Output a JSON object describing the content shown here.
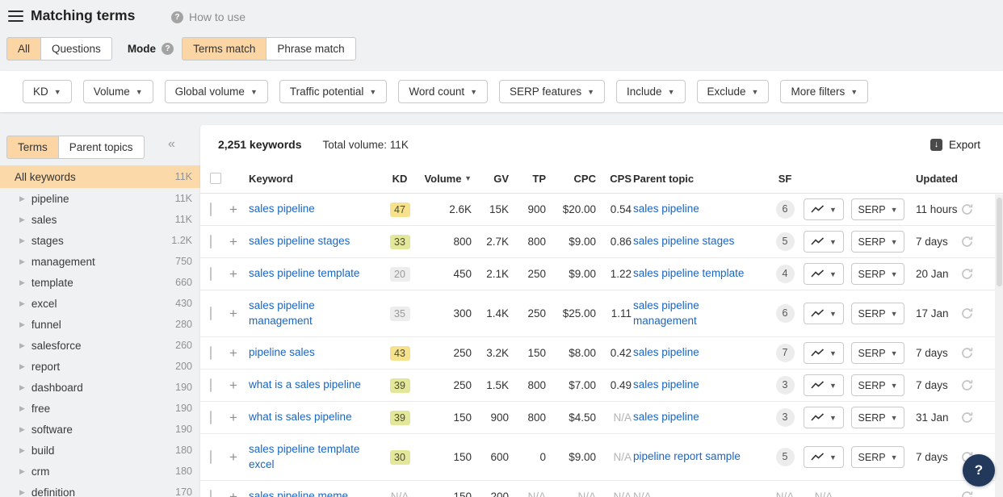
{
  "header": {
    "title": "Matching terms",
    "how_to_use": "How to use",
    "help_glyph": "?"
  },
  "mode_bar": {
    "scope_tabs": [
      {
        "label": "All",
        "selected": true
      },
      {
        "label": "Questions",
        "selected": false
      }
    ],
    "mode_label": "Mode",
    "mode_tabs": [
      {
        "label": "Terms match",
        "selected": true
      },
      {
        "label": "Phrase match",
        "selected": false
      }
    ]
  },
  "filters": [
    "KD",
    "Volume",
    "Global volume",
    "Traffic potential",
    "Word count",
    "SERP features",
    "Include",
    "Exclude",
    "More filters"
  ],
  "sidebar": {
    "tabs": [
      {
        "label": "Terms",
        "selected": true
      },
      {
        "label": "Parent topics",
        "selected": false
      }
    ],
    "collapse_glyph": "«",
    "all_row": {
      "label": "All keywords",
      "count": "11K"
    },
    "items": [
      {
        "label": "pipeline",
        "count": "11K"
      },
      {
        "label": "sales",
        "count": "11K"
      },
      {
        "label": "stages",
        "count": "1.2K"
      },
      {
        "label": "management",
        "count": "750"
      },
      {
        "label": "template",
        "count": "660"
      },
      {
        "label": "excel",
        "count": "430"
      },
      {
        "label": "funnel",
        "count": "280"
      },
      {
        "label": "salesforce",
        "count": "260"
      },
      {
        "label": "report",
        "count": "200"
      },
      {
        "label": "dashboard",
        "count": "190"
      },
      {
        "label": "free",
        "count": "190"
      },
      {
        "label": "software",
        "count": "190"
      },
      {
        "label": "build",
        "count": "180"
      },
      {
        "label": "crm",
        "count": "180"
      },
      {
        "label": "definition",
        "count": "170"
      }
    ]
  },
  "table": {
    "summary_count": "2,251 keywords",
    "summary_total": "Total volume: 11K",
    "export_label": "Export",
    "serp_label": "SERP",
    "columns": {
      "keyword": "Keyword",
      "kd": "KD",
      "volume": "Volume",
      "gv": "GV",
      "tp": "TP",
      "cpc": "CPC",
      "cps": "CPS",
      "parent": "Parent topic",
      "sf": "SF",
      "updated": "Updated"
    },
    "rows": [
      {
        "keyword": "sales pipeline",
        "kd": "47",
        "kd_style": "yellow",
        "volume": "2.6K",
        "gv": "15K",
        "tp": "900",
        "cpc": "$20.00",
        "cps": "0.54",
        "parent": "sales pipeline",
        "sf": "6",
        "updated": "11 hours",
        "buttons": true,
        "tall": false
      },
      {
        "keyword": "sales pipeline stages",
        "kd": "33",
        "kd_style": "lime",
        "volume": "800",
        "gv": "2.7K",
        "tp": "800",
        "cpc": "$9.00",
        "cps": "0.86",
        "parent": "sales pipeline stages",
        "sf": "5",
        "updated": "7 days",
        "buttons": true,
        "tall": false
      },
      {
        "keyword": "sales pipeline template",
        "kd": "20",
        "kd_style": "gray",
        "volume": "450",
        "gv": "2.1K",
        "tp": "250",
        "cpc": "$9.00",
        "cps": "1.22",
        "parent": "sales pipeline template",
        "sf": "4",
        "updated": "20 Jan",
        "buttons": true,
        "tall": false
      },
      {
        "keyword": "sales pipeline management",
        "kd": "35",
        "kd_style": "gray",
        "volume": "300",
        "gv": "1.4K",
        "tp": "250",
        "cpc": "$25.00",
        "cps": "1.11",
        "parent": "sales pipeline management",
        "sf": "6",
        "updated": "17 Jan",
        "buttons": true,
        "tall": true
      },
      {
        "keyword": "pipeline sales",
        "kd": "43",
        "kd_style": "yellow",
        "volume": "250",
        "gv": "3.2K",
        "tp": "150",
        "cpc": "$8.00",
        "cps": "0.42",
        "parent": "sales pipeline",
        "sf": "7",
        "updated": "7 days",
        "buttons": true,
        "tall": false
      },
      {
        "keyword": "what is a sales pipeline",
        "kd": "39",
        "kd_style": "lime",
        "volume": "250",
        "gv": "1.5K",
        "tp": "800",
        "cpc": "$7.00",
        "cps": "0.49",
        "parent": "sales pipeline",
        "sf": "3",
        "updated": "7 days",
        "buttons": true,
        "tall": false
      },
      {
        "keyword": "what is sales pipeline",
        "kd": "39",
        "kd_style": "lime",
        "volume": "150",
        "gv": "900",
        "tp": "800",
        "cpc": "$4.50",
        "cps": "N/A",
        "parent": "sales pipeline",
        "sf": "3",
        "updated": "31 Jan",
        "buttons": true,
        "tall": false
      },
      {
        "keyword": "sales pipeline template excel",
        "kd": "30",
        "kd_style": "lime",
        "volume": "150",
        "gv": "600",
        "tp": "0",
        "cpc": "$9.00",
        "cps": "N/A",
        "parent": "pipeline report sample",
        "sf": "5",
        "updated": "7 days",
        "buttons": true,
        "tall": true
      },
      {
        "keyword": "sales pipeline meme",
        "kd": "N/A",
        "kd_style": "na",
        "volume": "150",
        "gv": "200",
        "tp": "N/A",
        "cpc": "N/A",
        "cps": "N/A",
        "parent": "N/A",
        "sf": "N/A",
        "updated": "",
        "buttons": false,
        "tall": false
      }
    ]
  },
  "fab_glyph": "?",
  "colors": {
    "accent_orange": "#fbd6a4",
    "link_blue": "#1a66c2",
    "kd_yellow": "#f6e28c",
    "kd_lime": "#e2e79a",
    "badge_gray": "#ededed",
    "help_navy": "#22395c"
  }
}
